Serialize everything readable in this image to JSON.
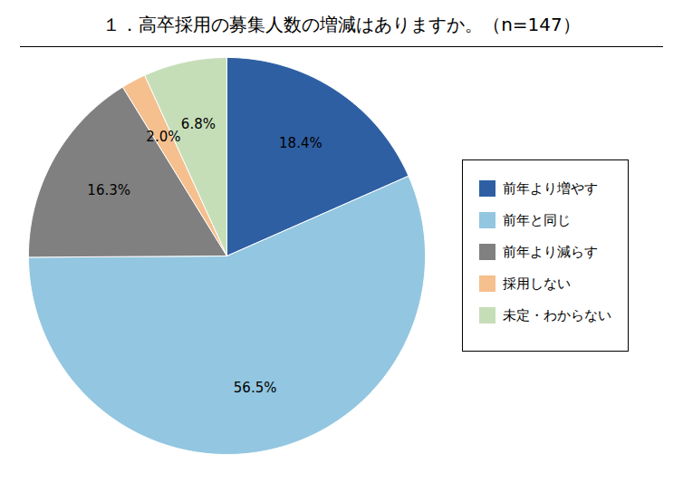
{
  "chart_data": {
    "type": "pie",
    "title": "１．高卒採用の募集人数の増減はありますか。（n=147）",
    "categories": [
      "前年より増やす",
      "前年と同じ",
      "前年より減らす",
      "採用しない",
      "未定・わからない"
    ],
    "values": [
      18.4,
      56.5,
      16.3,
      2.0,
      6.8
    ],
    "value_labels": [
      "18.4%",
      "56.5%",
      "16.3%",
      "2.0%",
      "6.8%"
    ],
    "colors": [
      "#2E5FA3",
      "#93C6E0",
      "#808080",
      "#F5BF8E",
      "#C6DEB8"
    ],
    "data_labels": true,
    "legend": "right"
  }
}
